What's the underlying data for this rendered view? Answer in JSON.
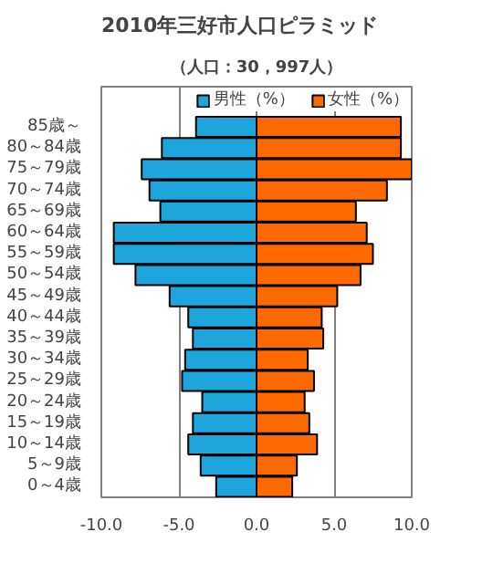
{
  "chart_data": {
    "type": "bar",
    "orientation": "horizontal",
    "stacked": true,
    "title": "2010年三好市人口ピラミッド",
    "subtitle": "（人口：30，997人）",
    "categories": [
      "85歳～",
      "80～84歳",
      "75～79歳",
      "70～74歳",
      "65～69歳",
      "60～64歳",
      "55～59歳",
      "50～54歳",
      "45～49歳",
      "40～44歳",
      "35～39歳",
      "30～34歳",
      "25～29歳",
      "20～24歳",
      "15～19歳",
      "10～14歳",
      "5～9歳",
      "0～4歳"
    ],
    "series": [
      {
        "name": "男性（%）",
        "color": "#1ea6dc",
        "values": [
          -3.9,
          -6.1,
          -7.4,
          -6.9,
          -6.2,
          -9.2,
          -9.2,
          -7.8,
          -5.6,
          -4.4,
          -4.1,
          -4.6,
          -4.8,
          -3.5,
          -4.1,
          -4.4,
          -3.6,
          -2.6
        ]
      },
      {
        "name": "女性（%）",
        "color": "#ff6a00",
        "values": [
          9.3,
          9.3,
          10.0,
          8.4,
          6.4,
          7.1,
          7.5,
          6.7,
          5.2,
          4.2,
          4.3,
          3.3,
          3.7,
          3.1,
          3.4,
          3.9,
          2.6,
          2.3
        ]
      }
    ],
    "xlim": [
      -10,
      10
    ],
    "xticks": [
      {
        "value": -10,
        "label": "-10.0"
      },
      {
        "value": -5,
        "label": "-5.0"
      },
      {
        "value": 0,
        "label": "0.0"
      },
      {
        "value": 5,
        "label": "5.0"
      },
      {
        "value": 10,
        "label": "10.0"
      }
    ],
    "grid": "x",
    "legend": "top right"
  }
}
